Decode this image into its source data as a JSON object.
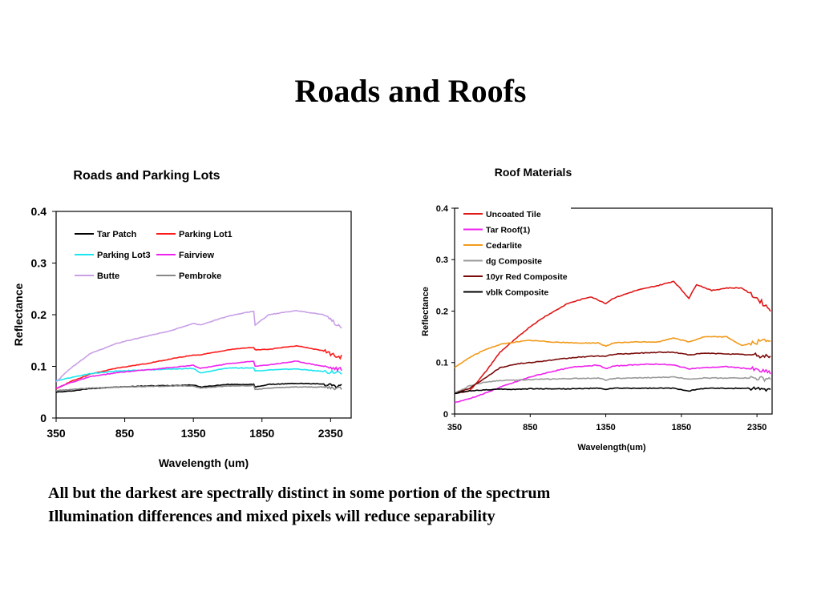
{
  "slide": {
    "title": "Roads and Roofs",
    "captions": [
      "All but the darkest are spectrally distinct in some portion of the spectrum",
      "Illumination differences and mixed pixels will reduce separability"
    ]
  },
  "chart_data": [
    {
      "type": "line",
      "title": "Roads and Parking Lots",
      "xlabel": "Wavelength (um)",
      "ylabel": "Reflectance",
      "xlim": [
        350,
        2500
      ],
      "ylim": [
        0,
        0.4
      ],
      "xticks": [
        350,
        850,
        1350,
        1850,
        2350
      ],
      "yticks": [
        0,
        0.1,
        0.2,
        0.3,
        0.4
      ],
      "ytick_labels": [
        "0",
        "0.1",
        "0.2",
        "0.3",
        "0.4"
      ],
      "grid": false,
      "legend": "top-left, inside plot, 2 columns",
      "series": [
        {
          "name": "Tar Patch",
          "color": "#000000",
          "x": [
            350,
            450,
            600,
            800,
            1000,
            1200,
            1350,
            1400,
            1600,
            1790,
            1800,
            1900,
            2100,
            2300,
            2400,
            2500
          ],
          "y": [
            0.05,
            0.052,
            0.057,
            0.06,
            0.062,
            0.063,
            0.064,
            0.06,
            0.065,
            0.065,
            0.06,
            0.065,
            0.067,
            0.066,
            0.062,
            0.062
          ]
        },
        {
          "name": "Parking Lot1",
          "color": "#ff1a1a",
          "x": [
            350,
            450,
            600,
            800,
            1000,
            1200,
            1350,
            1400,
            1600,
            1790,
            1800,
            1900,
            2100,
            2300,
            2400,
            2500
          ],
          "y": [
            0.056,
            0.07,
            0.085,
            0.097,
            0.105,
            0.115,
            0.122,
            0.122,
            0.132,
            0.137,
            0.132,
            0.133,
            0.14,
            0.13,
            0.118,
            0.12
          ]
        },
        {
          "name": "Parking Lot3",
          "color": "#19e6ee",
          "x": [
            350,
            450,
            600,
            800,
            1000,
            1200,
            1350,
            1400,
            1600,
            1790,
            1800,
            1900,
            2100,
            2300,
            2400,
            2500
          ],
          "y": [
            0.072,
            0.078,
            0.086,
            0.091,
            0.093,
            0.095,
            0.096,
            0.087,
            0.097,
            0.097,
            0.091,
            0.093,
            0.095,
            0.09,
            0.088,
            0.088
          ]
        },
        {
          "name": "Fairview",
          "color": "#ee22ee",
          "x": [
            350,
            450,
            600,
            800,
            1000,
            1200,
            1350,
            1400,
            1600,
            1790,
            1800,
            1900,
            2100,
            2300,
            2400,
            2500
          ],
          "y": [
            0.058,
            0.068,
            0.08,
            0.088,
            0.093,
            0.098,
            0.102,
            0.096,
            0.105,
            0.11,
            0.1,
            0.103,
            0.11,
            0.1,
            0.095,
            0.095
          ]
        },
        {
          "name": "Butte",
          "color": "#c9a0e6",
          "x": [
            350,
            450,
            600,
            800,
            1000,
            1200,
            1350,
            1400,
            1600,
            1790,
            1800,
            1900,
            2100,
            2300,
            2400,
            2500
          ],
          "y": [
            0.07,
            0.095,
            0.125,
            0.145,
            0.158,
            0.17,
            0.183,
            0.18,
            0.197,
            0.207,
            0.18,
            0.2,
            0.208,
            0.2,
            0.18,
            0.17
          ]
        },
        {
          "name": "Pembroke",
          "color": "#888888",
          "x": [
            350,
            450,
            600,
            800,
            1000,
            1200,
            1350,
            1400,
            1600,
            1790,
            1800,
            1900,
            2100,
            2300,
            2400,
            2500
          ],
          "y": [
            0.053,
            0.055,
            0.058,
            0.06,
            0.061,
            0.062,
            0.062,
            0.058,
            0.062,
            0.063,
            0.055,
            0.058,
            0.06,
            0.06,
            0.058,
            0.058
          ]
        }
      ]
    },
    {
      "type": "line",
      "title": "Roof Materials",
      "xlabel": "Wavelength(um)",
      "ylabel": "Reflectance",
      "xlim": [
        350,
        2450
      ],
      "ylim": [
        0,
        0.4
      ],
      "xticks": [
        350,
        850,
        1350,
        1850,
        2350
      ],
      "yticks": [
        0,
        0.1,
        0.2,
        0.3,
        0.4
      ],
      "ytick_labels": [
        "0",
        "0.1",
        "0.2",
        "0.3",
        "0.4"
      ],
      "grid": false,
      "legend": "top-left, inside plot, 1 column",
      "series": [
        {
          "name": "Uncoated Tile",
          "color": "#e01818",
          "x": [
            350,
            450,
            550,
            650,
            750,
            850,
            950,
            1100,
            1250,
            1350,
            1400,
            1550,
            1700,
            1800,
            1900,
            1950,
            2050,
            2150,
            2250,
            2350,
            2450
          ],
          "y": [
            0.04,
            0.045,
            0.08,
            0.12,
            0.145,
            0.17,
            0.19,
            0.215,
            0.228,
            0.215,
            0.225,
            0.24,
            0.25,
            0.258,
            0.225,
            0.252,
            0.24,
            0.245,
            0.245,
            0.225,
            0.2
          ]
        },
        {
          "name": "Tar Roof(1)",
          "color": "#ee22ee",
          "x": [
            350,
            450,
            550,
            650,
            750,
            850,
            1000,
            1150,
            1300,
            1350,
            1400,
            1550,
            1700,
            1800,
            1900,
            2000,
            2150,
            2300,
            2400,
            2450
          ],
          "y": [
            0.022,
            0.03,
            0.04,
            0.052,
            0.062,
            0.072,
            0.083,
            0.092,
            0.095,
            0.088,
            0.093,
            0.096,
            0.097,
            0.095,
            0.088,
            0.09,
            0.092,
            0.088,
            0.082,
            0.08
          ]
        },
        {
          "name": "Cedarlite",
          "color": "#f29a1a",
          "x": [
            350,
            450,
            550,
            650,
            750,
            850,
            1000,
            1150,
            1300,
            1350,
            1400,
            1550,
            1700,
            1800,
            1900,
            2000,
            2150,
            2250,
            2350,
            2450
          ],
          "y": [
            0.09,
            0.11,
            0.125,
            0.135,
            0.14,
            0.143,
            0.14,
            0.138,
            0.138,
            0.132,
            0.138,
            0.14,
            0.14,
            0.148,
            0.14,
            0.15,
            0.15,
            0.133,
            0.14,
            0.145
          ]
        },
        {
          "name": "dg Composite",
          "color": "#999999",
          "x": [
            350,
            450,
            550,
            650,
            750,
            850,
            1000,
            1150,
            1300,
            1350,
            1400,
            1550,
            1700,
            1800,
            1900,
            2000,
            2150,
            2300,
            2400,
            2450
          ],
          "y": [
            0.04,
            0.055,
            0.062,
            0.065,
            0.066,
            0.067,
            0.068,
            0.069,
            0.07,
            0.066,
            0.069,
            0.07,
            0.071,
            0.072,
            0.068,
            0.07,
            0.07,
            0.07,
            0.068,
            0.07
          ]
        },
        {
          "name": "10yr Red Composite",
          "color": "#7a0a0a",
          "x": [
            350,
            450,
            550,
            650,
            750,
            850,
            1000,
            1150,
            1300,
            1350,
            1400,
            1550,
            1700,
            1800,
            1900,
            2000,
            2150,
            2300,
            2400,
            2450
          ],
          "y": [
            0.04,
            0.05,
            0.07,
            0.09,
            0.097,
            0.1,
            0.105,
            0.11,
            0.113,
            0.112,
            0.116,
            0.118,
            0.12,
            0.12,
            0.115,
            0.118,
            0.117,
            0.115,
            0.112,
            0.115
          ]
        },
        {
          "name": "vblk Composite",
          "color": "#000000",
          "x": [
            350,
            450,
            550,
            650,
            750,
            850,
            1000,
            1150,
            1300,
            1350,
            1400,
            1550,
            1700,
            1800,
            1900,
            2000,
            2150,
            2300,
            2400,
            2450
          ],
          "y": [
            0.04,
            0.045,
            0.047,
            0.048,
            0.048,
            0.049,
            0.049,
            0.049,
            0.05,
            0.048,
            0.05,
            0.05,
            0.05,
            0.05,
            0.045,
            0.05,
            0.05,
            0.05,
            0.048,
            0.05
          ]
        }
      ]
    }
  ]
}
